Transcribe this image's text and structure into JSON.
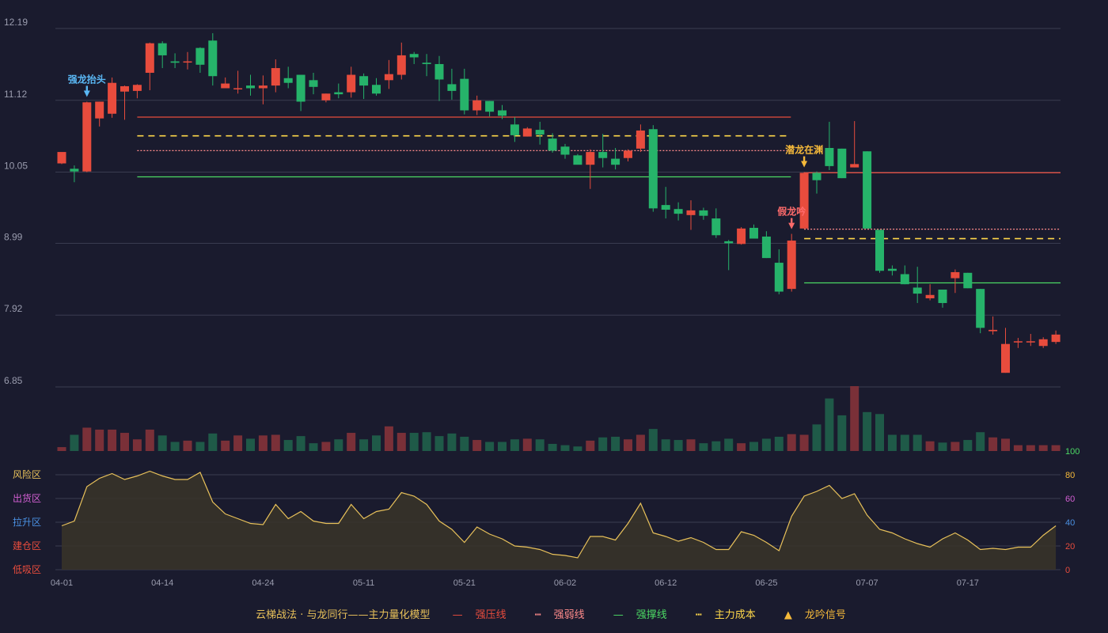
{
  "colors": {
    "bg": "#1a1b2e",
    "grid": "#3a3c50",
    "up": "#e84c3d",
    "down": "#26b36a",
    "upVol": "#7a3038",
    "downVol": "#1f5a48",
    "yellow": "#e8c15a",
    "pressure": "#e84c3d",
    "weak": "#ff8b8b",
    "support": "#4cd964",
    "cost": "#ffd84a",
    "text": "#9a9cae"
  },
  "chart_data": {
    "type": "candlestick",
    "price_ticks": [
      "12.19",
      "11.12",
      "10.05",
      "8.99",
      "7.92",
      "6.85"
    ],
    "price_range": [
      6.85,
      12.19
    ],
    "x_ticks": [
      {
        "i": 0,
        "label": "04-01"
      },
      {
        "i": 8,
        "label": "04-14"
      },
      {
        "i": 16,
        "label": "04-24"
      },
      {
        "i": 24,
        "label": "05-11"
      },
      {
        "i": 32,
        "label": "05-21"
      },
      {
        "i": 40,
        "label": "06-02"
      },
      {
        "i": 48,
        "label": "06-12"
      },
      {
        "i": 56,
        "label": "06-25"
      },
      {
        "i": 64,
        "label": "07-07"
      },
      {
        "i": 72,
        "label": "07-17"
      }
    ],
    "candles": [
      [
        10.18,
        10.35,
        10.17,
        10.34
      ],
      [
        10.1,
        10.06,
        9.9,
        10.15
      ],
      [
        10.06,
        11.09,
        10.05,
        11.1
      ],
      [
        10.85,
        11.1,
        10.73,
        11.1
      ],
      [
        10.92,
        11.38,
        10.86,
        11.46
      ],
      [
        11.25,
        11.33,
        10.83,
        11.34
      ],
      [
        11.26,
        11.35,
        11.15,
        11.36
      ],
      [
        11.53,
        11.97,
        11.27,
        11.98
      ],
      [
        11.97,
        11.79,
        11.6,
        12.0
      ],
      [
        11.7,
        11.68,
        11.6,
        11.82
      ],
      [
        11.7,
        11.7,
        11.58,
        11.84
      ],
      [
        11.9,
        11.65,
        11.53,
        11.91
      ],
      [
        12.01,
        11.48,
        11.34,
        12.12
      ],
      [
        11.3,
        11.37,
        11.3,
        11.46
      ],
      [
        11.3,
        11.3,
        11.22,
        11.56
      ],
      [
        11.34,
        11.3,
        11.19,
        11.5
      ],
      [
        11.3,
        11.34,
        11.06,
        11.49
      ],
      [
        11.34,
        11.6,
        11.24,
        11.73
      ],
      [
        11.45,
        11.38,
        11.3,
        11.62
      ],
      [
        11.5,
        11.1,
        10.96,
        11.5
      ],
      [
        11.42,
        11.32,
        11.21,
        11.53
      ],
      [
        11.12,
        11.22,
        11.09,
        11.22
      ],
      [
        11.24,
        11.21,
        11.15,
        11.37
      ],
      [
        11.24,
        11.5,
        11.16,
        11.62
      ],
      [
        11.48,
        11.34,
        11.14,
        11.52
      ],
      [
        11.35,
        11.22,
        11.19,
        11.45
      ],
      [
        11.42,
        11.51,
        11.29,
        11.72
      ],
      [
        11.5,
        11.79,
        11.43,
        11.98
      ],
      [
        11.81,
        11.76,
        11.66,
        11.84
      ],
      [
        11.68,
        11.66,
        11.48,
        11.81
      ],
      [
        11.66,
        11.43,
        11.11,
        11.78
      ],
      [
        11.36,
        11.26,
        11.13,
        11.59
      ],
      [
        11.44,
        10.97,
        10.91,
        11.59
      ],
      [
        10.97,
        11.12,
        10.9,
        11.19
      ],
      [
        11.11,
        10.95,
        10.88,
        11.11
      ],
      [
        10.97,
        10.89,
        10.84,
        11.05
      ],
      [
        10.76,
        10.6,
        10.5,
        10.87
      ],
      [
        10.58,
        10.7,
        10.58,
        10.72
      ],
      [
        10.68,
        10.61,
        10.46,
        10.8
      ],
      [
        10.55,
        10.37,
        10.34,
        10.63
      ],
      [
        10.43,
        10.31,
        10.25,
        10.47
      ],
      [
        10.3,
        10.16,
        10.17,
        10.32
      ],
      [
        10.16,
        10.35,
        9.8,
        10.39
      ],
      [
        10.35,
        10.26,
        10.12,
        10.62
      ],
      [
        10.25,
        10.16,
        10.09,
        10.41
      ],
      [
        10.26,
        10.37,
        10.21,
        10.39
      ],
      [
        10.4,
        10.67,
        10.35,
        10.76
      ],
      [
        10.69,
        9.51,
        9.46,
        10.75
      ],
      [
        9.56,
        9.49,
        9.36,
        9.83
      ],
      [
        9.5,
        9.43,
        9.33,
        9.6
      ],
      [
        9.41,
        9.48,
        9.19,
        9.63
      ],
      [
        9.48,
        9.4,
        9.34,
        9.52
      ],
      [
        9.36,
        9.11,
        9.07,
        9.51
      ],
      [
        9.02,
        8.99,
        8.59,
        9.04
      ],
      [
        8.98,
        9.21,
        8.97,
        9.23
      ],
      [
        9.22,
        9.06,
        9.06,
        9.27
      ],
      [
        9.09,
        8.77,
        8.77,
        9.17
      ],
      [
        8.7,
        8.27,
        8.23,
        8.9
      ],
      [
        8.31,
        9.03,
        8.27,
        9.13
      ],
      [
        9.21,
        10.04,
        9.21,
        10.05
      ],
      [
        10.04,
        9.93,
        9.73,
        10.06
      ],
      [
        10.41,
        10.14,
        10.08,
        10.8
      ],
      [
        10.4,
        9.96,
        9.96,
        10.4
      ],
      [
        10.12,
        10.17,
        10.12,
        10.81
      ],
      [
        10.36,
        9.21,
        9.21,
        10.36
      ],
      [
        9.19,
        8.58,
        8.55,
        9.19
      ],
      [
        8.61,
        8.58,
        8.51,
        8.66
      ],
      [
        8.53,
        8.38,
        8.38,
        8.66
      ],
      [
        8.33,
        8.24,
        8.1,
        8.64
      ],
      [
        8.17,
        8.22,
        8.14,
        8.38
      ],
      [
        8.3,
        8.1,
        8.03,
        8.3
      ],
      [
        8.47,
        8.56,
        8.25,
        8.6
      ],
      [
        8.55,
        8.32,
        8.32,
        8.55
      ],
      [
        8.31,
        7.73,
        7.65,
        8.31
      ],
      [
        7.68,
        7.7,
        7.63,
        7.9
      ],
      [
        7.06,
        7.49,
        7.06,
        7.73
      ],
      [
        7.53,
        7.53,
        7.43,
        7.58
      ],
      [
        7.52,
        7.53,
        7.46,
        7.64
      ],
      [
        7.46,
        7.56,
        7.43,
        7.59
      ],
      [
        7.52,
        7.63,
        7.49,
        7.69
      ]
    ],
    "volume_range": [
      0,
      100
    ],
    "volume": [
      6,
      25,
      36,
      33,
      33,
      28,
      18,
      33,
      24,
      14,
      16,
      14,
      27,
      16,
      24,
      19,
      24,
      25,
      17,
      23,
      12,
      14,
      18,
      28,
      18,
      24,
      38,
      28,
      28,
      29,
      23,
      27,
      22,
      17,
      14,
      14,
      18,
      19,
      18,
      11,
      9,
      7,
      16,
      21,
      22,
      18,
      25,
      34,
      18,
      17,
      18,
      12,
      15,
      19,
      12,
      14,
      19,
      22,
      26,
      25,
      41,
      81,
      55,
      100,
      60,
      57,
      25,
      25,
      25,
      15,
      13,
      14,
      17,
      29,
      21,
      19,
      9,
      9,
      9,
      9
    ],
    "indicator_ticks": [
      0,
      20,
      40,
      60,
      80,
      100
    ],
    "indicator": [
      37,
      41,
      70,
      77,
      81,
      76,
      79,
      83,
      79,
      76,
      76,
      82,
      57,
      47,
      43,
      39,
      38,
      55,
      43,
      49,
      41,
      39,
      39,
      55,
      43,
      49,
      51,
      65,
      62,
      55,
      41,
      34,
      23,
      36,
      30,
      26,
      20,
      19,
      17,
      13,
      12,
      10,
      28,
      28,
      25,
      39,
      56,
      31,
      28,
      24,
      27,
      23,
      17,
      17,
      32,
      29,
      23,
      16,
      45,
      62,
      66,
      71,
      60,
      64,
      46,
      34,
      31,
      26,
      22,
      19,
      26,
      31,
      25,
      17,
      18,
      17,
      19,
      19,
      29,
      37
    ],
    "zones": [
      {
        "v": 80,
        "label": "风险区",
        "color": "#e8c15a"
      },
      {
        "v": 60,
        "label": "出货区",
        "color": "#d35fd3"
      },
      {
        "v": 40,
        "label": "拉升区",
        "color": "#4a90e2"
      },
      {
        "v": 20,
        "label": "建仓区",
        "color": "#e84c3d"
      },
      {
        "v": 0,
        "label": "低吸区",
        "color": "#e84c3d"
      }
    ],
    "levels": [
      {
        "type": "pressure",
        "y": 10.87,
        "from": 6,
        "to": 57
      },
      {
        "type": "cost",
        "y": 10.59,
        "from": 6,
        "to": 57
      },
      {
        "type": "weak",
        "y": 10.37,
        "from": 6,
        "to": 57
      },
      {
        "type": "support",
        "y": 9.98,
        "from": 6,
        "to": 57
      },
      {
        "type": "pressure",
        "y": 10.04,
        "from": 59,
        "to": 79
      },
      {
        "type": "weak",
        "y": 9.2,
        "from": 59,
        "to": 79
      },
      {
        "type": "cost",
        "y": 9.06,
        "from": 59,
        "to": 79
      },
      {
        "type": "support",
        "y": 8.4,
        "from": 59,
        "to": 79
      }
    ],
    "signals": [
      {
        "i": 2,
        "label": "强龙抬头",
        "color": "#5ab8f5",
        "pos": "above"
      },
      {
        "i": 59,
        "label": "潜龙在渊",
        "color": "#f5b93a",
        "pos": "above"
      },
      {
        "i": 58,
        "label": "假龙吟",
        "color": "#ff6b6b",
        "pos": "above"
      }
    ]
  },
  "legend": {
    "model": "云梯战法 · 与龙同行——主力量化模型",
    "pressure": "强压线",
    "weak": "强弱线",
    "support": "强撑线",
    "cost": "主力成本",
    "signal": "龙吟信号"
  }
}
